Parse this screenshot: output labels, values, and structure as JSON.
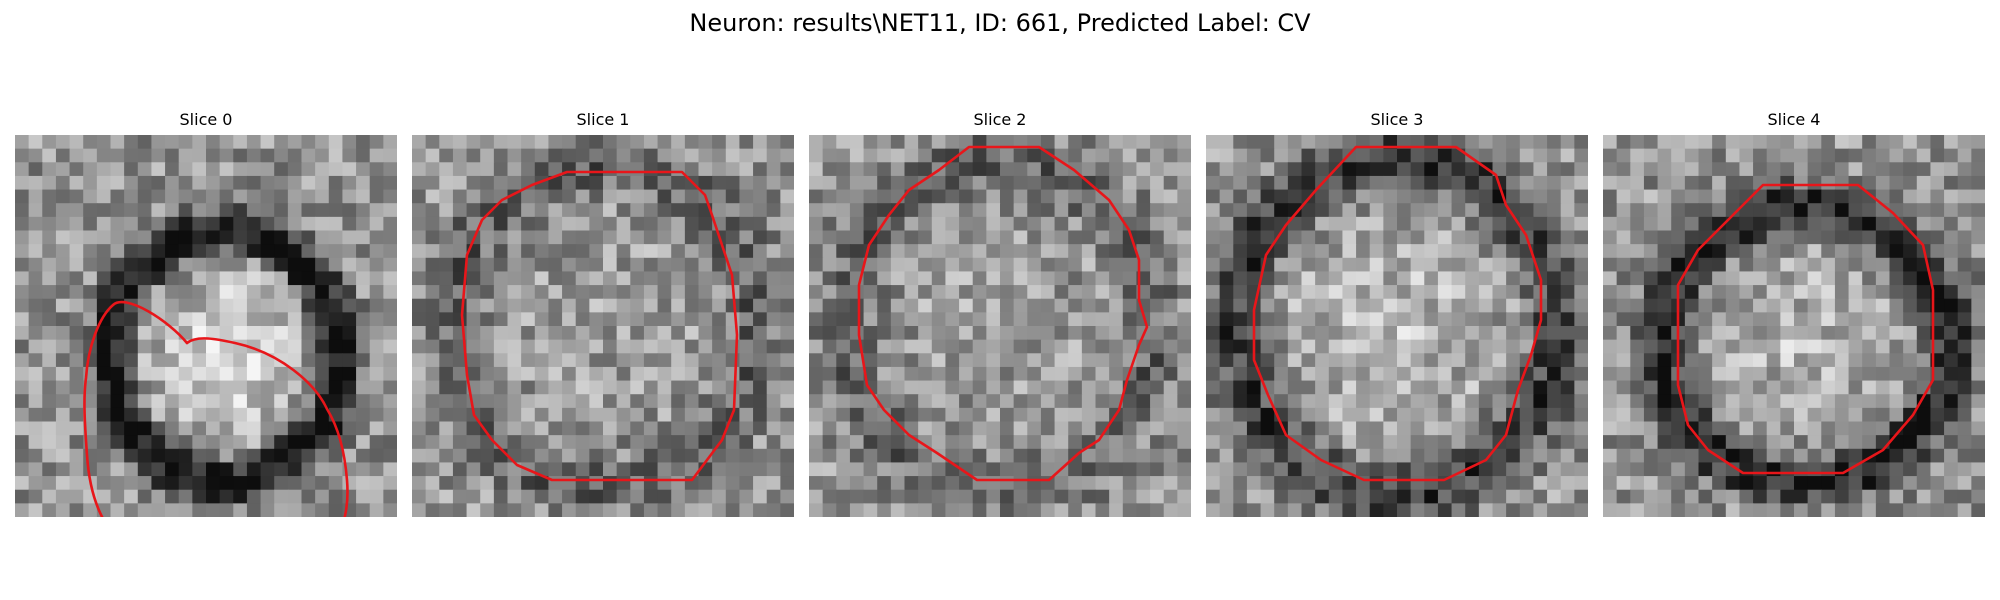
{
  "figure": {
    "title": "Neuron: results\\NET11, ID: 661, Predicted Label: CV",
    "contour_color": "#e8161a"
  },
  "slices": [
    {
      "title": "Slice 0"
    },
    {
      "title": "Slice 1"
    },
    {
      "title": "Slice 2"
    },
    {
      "title": "Slice 3"
    },
    {
      "title": "Slice 4"
    }
  ]
}
